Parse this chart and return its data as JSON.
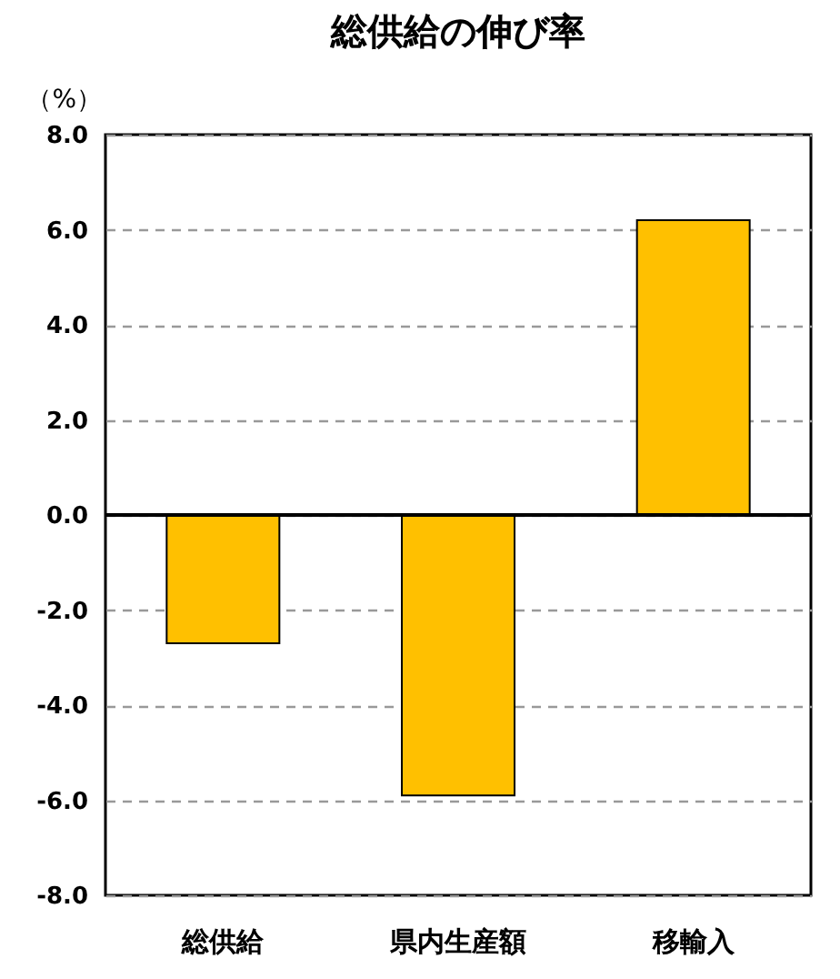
{
  "chart_data": {
    "type": "bar",
    "title": "総供給の伸び率",
    "ylabel": "（%）",
    "categories": [
      "総供給",
      "県内生産額",
      "移輸入"
    ],
    "values": [
      -2.7,
      -5.9,
      6.2
    ],
    "color": "#ffc000",
    "ylim": [
      -8,
      8
    ],
    "yticks": [
      {
        "value": -8,
        "label": "-8.0"
      },
      {
        "value": -6,
        "label": "-6.0"
      },
      {
        "value": -4,
        "label": "-4.0"
      },
      {
        "value": -2,
        "label": "-2.0"
      },
      {
        "value": 0,
        "label": "0.0"
      },
      {
        "value": 2,
        "label": "2.0"
      },
      {
        "value": 4,
        "label": "4.0"
      },
      {
        "value": 6,
        "label": "6.0"
      },
      {
        "value": 8,
        "label": "8.0"
      }
    ],
    "grid": "y"
  }
}
